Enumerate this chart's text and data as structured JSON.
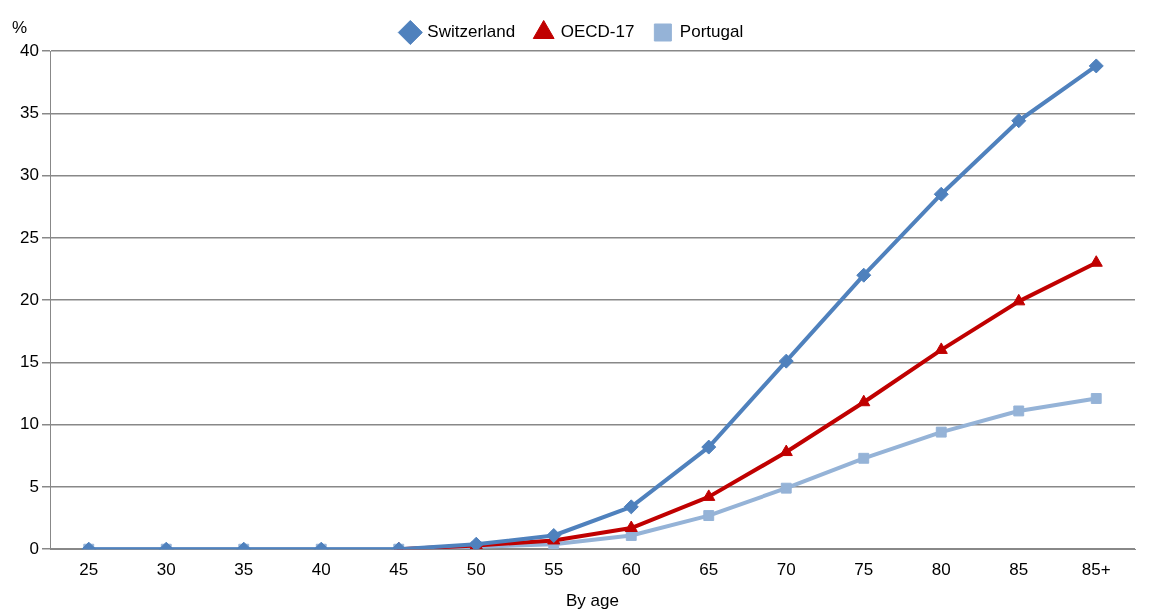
{
  "chart_data": {
    "type": "line",
    "xlabel": "By age",
    "ylabel": "%",
    "categories": [
      "25",
      "30",
      "35",
      "40",
      "45",
      "50",
      "55",
      "60",
      "65",
      "70",
      "75",
      "80",
      "85",
      "85+"
    ],
    "series": [
      {
        "name": "Switzerland",
        "color": "#4f81bd",
        "marker": "diamond",
        "values": [
          0,
          0,
          0,
          0,
          0,
          0.4,
          1.1,
          3.4,
          8.2,
          15.1,
          22,
          28.5,
          34.4,
          38.8
        ]
      },
      {
        "name": "OECD-17",
        "color": "#c00000",
        "marker": "triangle",
        "values": [
          null,
          null,
          null,
          null,
          0,
          0.3,
          0.7,
          1.7,
          4.2,
          7.8,
          11.8,
          16,
          19.9,
          23
        ]
      },
      {
        "name": "Portugal",
        "color": "#95b3d7",
        "marker": "square",
        "values": [
          0,
          0,
          0,
          0,
          0,
          0.2,
          0.4,
          1.1,
          2.7,
          4.9,
          7.3,
          9.4,
          11.1,
          12.1
        ]
      }
    ],
    "ylim": [
      0,
      40
    ],
    "yticks": [
      0,
      5,
      10,
      15,
      20,
      25,
      30,
      35,
      40
    ],
    "grid": "y",
    "legend": "top"
  }
}
